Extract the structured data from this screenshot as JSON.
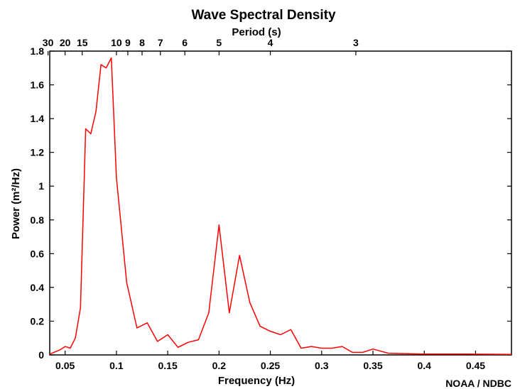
{
  "chart_data": {
    "type": "line",
    "title": "Wave Spectral Density",
    "top_axis_label": "Period (s)",
    "xlabel": "Frequency (Hz)",
    "ylabel": "Power (m²/Hz)",
    "credit": "NOAA / NDBC",
    "xlim": [
      0.035,
      0.485
    ],
    "ylim": [
      0,
      1.8
    ],
    "x_ticks": [
      "0.05",
      "0.1",
      "0.15",
      "0.2",
      "0.25",
      "0.3",
      "0.35",
      "0.4",
      "0.45"
    ],
    "y_ticks": [
      "0",
      "0.2",
      "0.4",
      "0.6",
      "0.8",
      "1",
      "1.2",
      "1.4",
      "1.6",
      "1.8"
    ],
    "period_ticks": [
      "30",
      "20",
      "15",
      "10",
      "9",
      "8",
      "7",
      "6",
      "5",
      "4",
      "3"
    ],
    "line_color": "#ff0000",
    "grid": false,
    "series": [
      {
        "x": [
          0.035,
          0.045,
          0.05,
          0.055,
          0.06,
          0.065,
          0.07,
          0.075,
          0.08,
          0.085,
          0.09,
          0.095,
          0.1,
          0.11,
          0.12,
          0.13,
          0.14,
          0.15,
          0.16,
          0.17,
          0.18,
          0.19,
          0.2,
          0.21,
          0.22,
          0.23,
          0.24,
          0.25,
          0.26,
          0.27,
          0.28,
          0.29,
          0.3,
          0.31,
          0.32,
          0.33,
          0.34,
          0.35,
          0.365,
          0.38,
          0.4,
          0.42,
          0.44,
          0.46,
          0.485
        ],
        "y": [
          0.005,
          0.03,
          0.05,
          0.04,
          0.1,
          0.28,
          1.34,
          1.31,
          1.44,
          1.72,
          1.7,
          1.76,
          1.05,
          0.43,
          0.16,
          0.19,
          0.08,
          0.12,
          0.045,
          0.075,
          0.09,
          0.25,
          0.77,
          0.25,
          0.59,
          0.31,
          0.17,
          0.14,
          0.12,
          0.15,
          0.04,
          0.05,
          0.04,
          0.04,
          0.05,
          0.015,
          0.015,
          0.035,
          0.01,
          0.008,
          0.005,
          0.005,
          0.005,
          0.004,
          0.003
        ]
      }
    ]
  }
}
